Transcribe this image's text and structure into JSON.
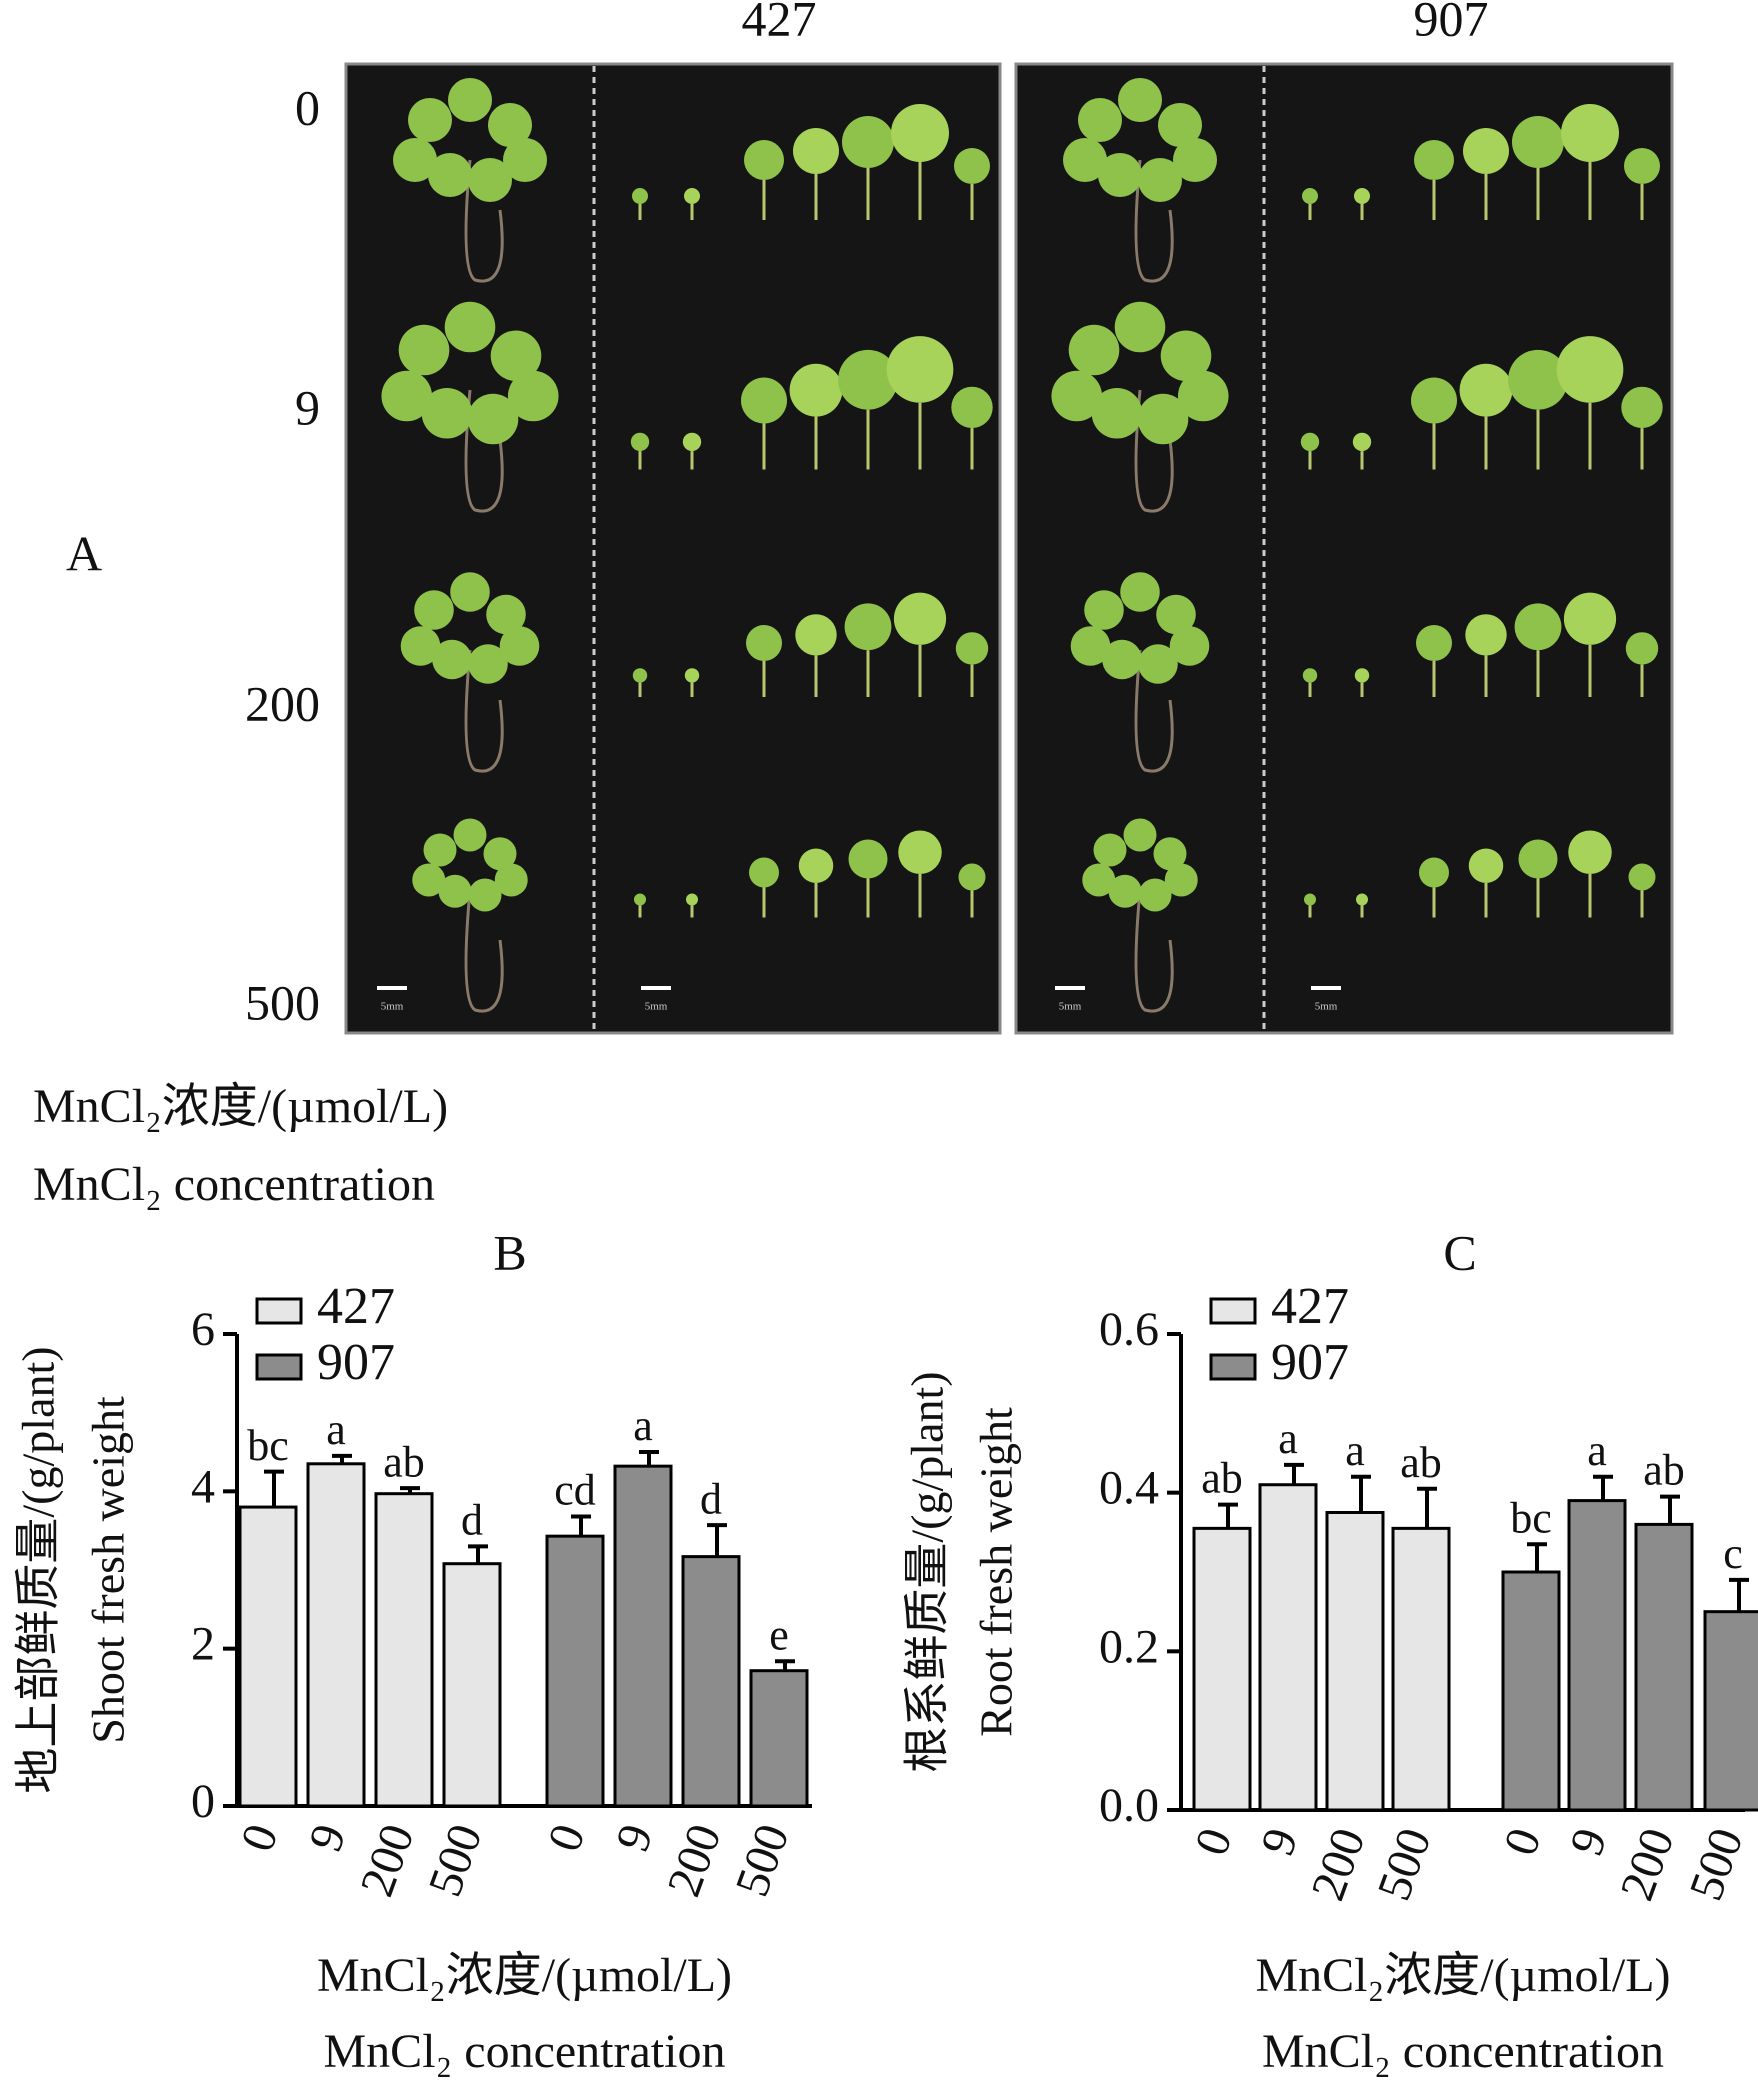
{
  "photo_panel": {
    "label": "A",
    "columns": [
      "427",
      "907"
    ],
    "rows": [
      "0",
      "9",
      "200",
      "500"
    ],
    "axis_label": [
      "MnCl₂浓度/(µmol/L)",
      "MnCl₂ concentration"
    ],
    "scale_bar_label": "5mm"
  },
  "chart_data": [
    {
      "type": "bar",
      "title": "B",
      "ylabel": [
        "地上部鲜质量/(g/plant)",
        "Shoot fresh weight"
      ],
      "xlabel": [
        "MnCl₂浓度/(µmol/L)",
        "MnCl₂ concentration"
      ],
      "categories": [
        "0",
        "9",
        "200",
        "500"
      ],
      "series": [
        {
          "name": "427",
          "color": "#e6e6e6",
          "values": [
            3.8,
            4.35,
            3.97,
            3.08
          ],
          "errors": [
            0.45,
            0.1,
            0.07,
            0.22
          ],
          "letters": [
            "bc",
            "a",
            "ab",
            "d"
          ]
        },
        {
          "name": "907",
          "color": "#8c8c8c",
          "values": [
            3.43,
            4.32,
            3.17,
            1.72
          ],
          "errors": [
            0.25,
            0.18,
            0.4,
            0.12
          ],
          "letters": [
            "cd",
            "a",
            "d",
            "e"
          ]
        }
      ],
      "ylim": [
        0,
        6
      ],
      "yticks": [
        0,
        2,
        4,
        6
      ],
      "legend": "top-left"
    },
    {
      "type": "bar",
      "title": "C",
      "ylabel": [
        "根系鲜质量/(g/plant)",
        "Root fresh weight"
      ],
      "xlabel": [
        "MnCl₂浓度/(µmol/L)",
        "MnCl₂ concentration"
      ],
      "categories": [
        "0",
        "9",
        "200",
        "500"
      ],
      "series": [
        {
          "name": "427",
          "color": "#e6e6e6",
          "values": [
            0.355,
            0.41,
            0.375,
            0.355
          ],
          "errors": [
            0.03,
            0.025,
            0.045,
            0.05
          ],
          "letters": [
            "ab",
            "a",
            "a",
            "ab"
          ]
        },
        {
          "name": "907",
          "color": "#8c8c8c",
          "values": [
            0.3,
            0.39,
            0.36,
            0.25
          ],
          "errors": [
            0.035,
            0.03,
            0.035,
            0.04
          ],
          "letters": [
            "bc",
            "a",
            "ab",
            "c"
          ]
        }
      ],
      "ylim": [
        0,
        0.6
      ],
      "yticks": [
        {
          "value": 0,
          "label": "0.0"
        },
        0.2,
        0.4,
        0.6
      ],
      "legend": "top-left"
    }
  ]
}
